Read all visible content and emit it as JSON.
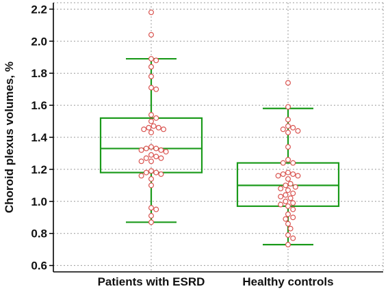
{
  "chart_data": {
    "type": "box",
    "title": "",
    "xlabel": "",
    "ylabel": "Choroid plexus volumes, %",
    "ylim": [
      0.56,
      2.24
    ],
    "yticks": [
      0.6,
      0.8,
      1.0,
      1.2,
      1.4,
      1.6,
      1.8,
      2.0,
      2.2
    ],
    "ytick_labels": [
      "0.6",
      "0.8",
      "1.0",
      "1.2",
      "1.4",
      "1.6",
      "1.8",
      "2.0",
      "2.2"
    ],
    "grid": true,
    "categories": [
      "Patients with ESRD",
      "Healthy controls"
    ],
    "boxes": [
      {
        "whisker_low": 0.87,
        "q1": 1.18,
        "median": 1.33,
        "q3": 1.52,
        "whisker_high": 1.89
      },
      {
        "whisker_low": 0.73,
        "q1": 0.97,
        "median": 1.1,
        "q3": 1.24,
        "whisker_high": 1.58
      }
    ],
    "points": [
      [
        2.18,
        2.04,
        1.89,
        1.88,
        1.84,
        1.78,
        1.71,
        1.7,
        1.54,
        1.52,
        1.5,
        1.47,
        1.46,
        1.46,
        1.45,
        1.45,
        1.43,
        1.34,
        1.33,
        1.33,
        1.32,
        1.32,
        1.31,
        1.29,
        1.28,
        1.27,
        1.27,
        1.25,
        1.25,
        1.19,
        1.18,
        1.18,
        1.17,
        1.16,
        1.14,
        1.1,
        0.96,
        0.95,
        0.91,
        0.87
      ],
      [
        1.74,
        1.59,
        1.51,
        1.47,
        1.46,
        1.45,
        1.44,
        1.43,
        1.34,
        1.26,
        1.24,
        1.24,
        1.18,
        1.17,
        1.17,
        1.16,
        1.16,
        1.14,
        1.11,
        1.1,
        1.09,
        1.08,
        1.07,
        1.05,
        1.04,
        1.03,
        1.02,
        1.0,
        0.99,
        0.98,
        0.97,
        0.95,
        0.92,
        0.9,
        0.89,
        0.86,
        0.83,
        0.79,
        0.77,
        0.73
      ]
    ],
    "colors": {
      "box": "#1a9a1a",
      "point_edge": "#d9534f",
      "point_fill": "#ffffff",
      "grid": "#999999",
      "axis": "#000000"
    }
  }
}
